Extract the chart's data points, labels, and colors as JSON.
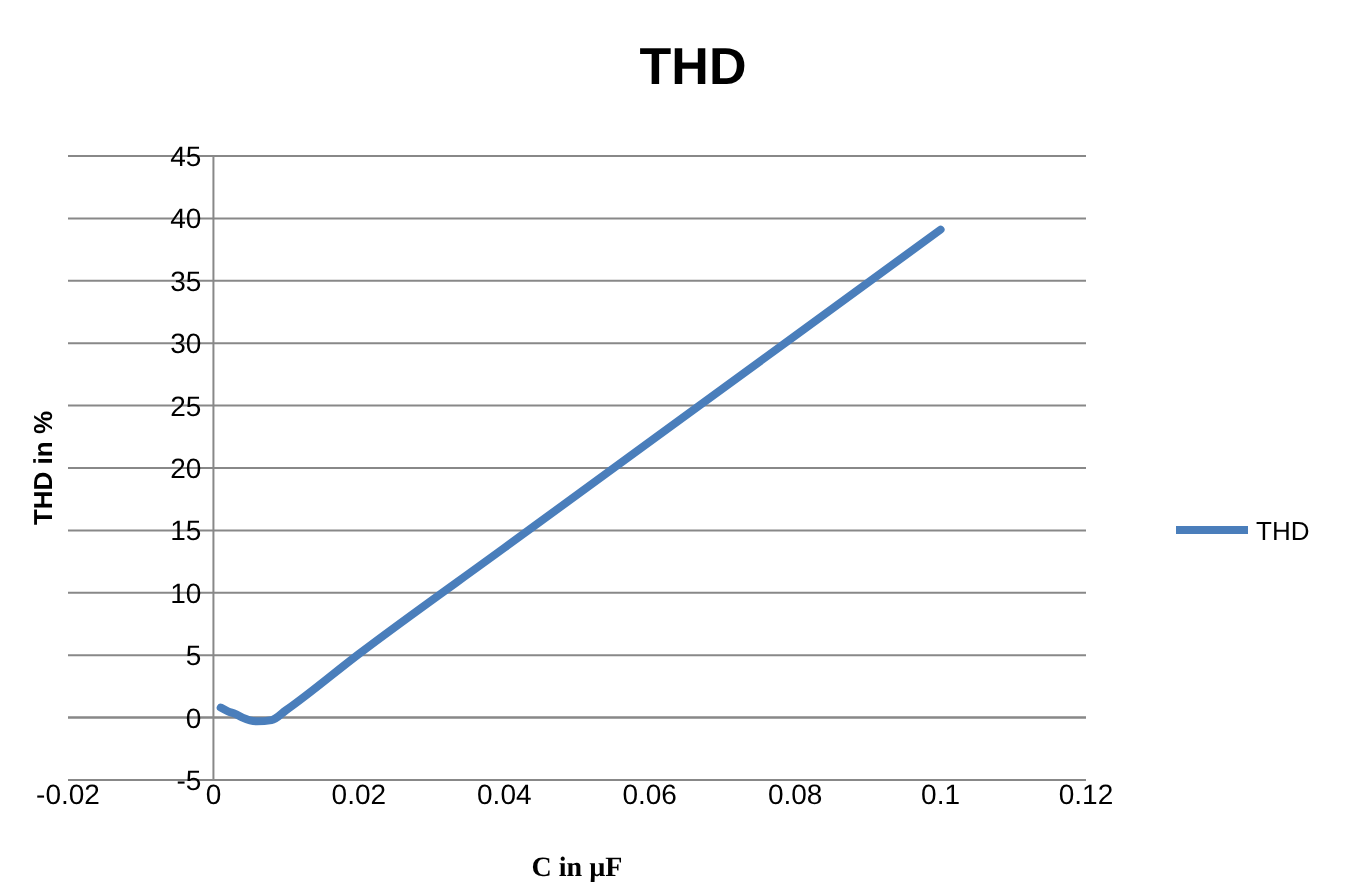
{
  "chart_data": {
    "type": "line",
    "title": "THD",
    "xlabel": "C in µF",
    "ylabel": "THD in %",
    "xlim": [
      -0.02,
      0.12
    ],
    "xticks": [
      -0.02,
      0,
      0.02,
      0.04,
      0.06,
      0.08,
      0.1,
      0.12
    ],
    "ylim": [
      -5,
      45
    ],
    "yticks": [
      -5,
      0,
      5,
      10,
      15,
      20,
      25,
      30,
      35,
      40,
      45
    ],
    "grid": "y",
    "legend": "right",
    "marker": "none",
    "line_style": "solid",
    "series": [
      {
        "name": "THD",
        "color": "#4a7ebb",
        "x": [
          0.001,
          0.002,
          0.003,
          0.004,
          0.006,
          0.008,
          0.01,
          0.02,
          0.04,
          0.06,
          0.08,
          0.1
        ],
        "values": [
          0.8,
          0.5,
          0.3,
          0,
          -0.3,
          -0.2,
          0.6,
          5.1,
          13.6,
          22.1,
          30.6,
          39.1
        ]
      }
    ]
  }
}
